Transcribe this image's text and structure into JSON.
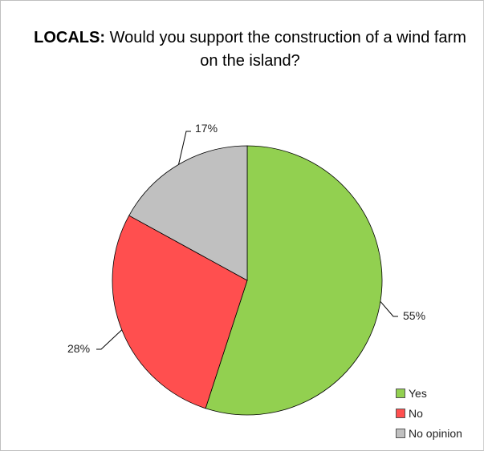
{
  "chart_data": {
    "type": "pie",
    "title_lead": "LOCALS:",
    "title_rest": "Would you support the construction of a wind farm on the island?",
    "categories": [
      "Yes",
      "No",
      "No opinion"
    ],
    "values": [
      55,
      28,
      17
    ],
    "data_labels": [
      "55%",
      "28%",
      "17%"
    ],
    "colors": [
      "#92d050",
      "#ff4f4f",
      "#c0c0c0"
    ],
    "legend_position": "bottom-right"
  }
}
